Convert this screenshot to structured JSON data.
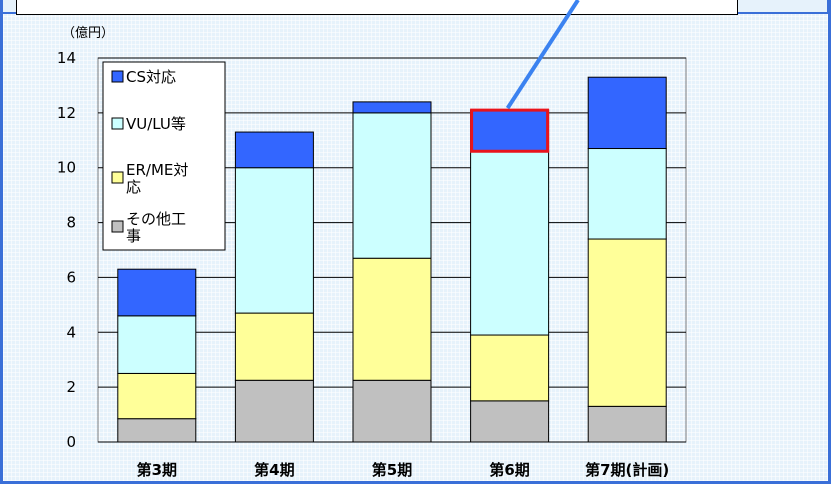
{
  "chart_data": {
    "type": "bar",
    "stacked": true,
    "unit_label": "（億円）",
    "categories": [
      "第3期",
      "第4期",
      "第5期",
      "第6期",
      "第7期(計画)"
    ],
    "ylim": [
      0,
      14
    ],
    "yticks": [
      0,
      2,
      4,
      6,
      8,
      10,
      12,
      14
    ],
    "grid": true,
    "legend_position": "top-left",
    "series": [
      {
        "name": "その他工事",
        "color": "#c0c0c0",
        "values": [
          0.85,
          2.25,
          2.25,
          1.5,
          1.3
        ]
      },
      {
        "name": "ER/ME対応",
        "color": "#ffff99",
        "values": [
          1.65,
          2.45,
          4.45,
          2.4,
          6.1
        ]
      },
      {
        "name": "VU/LU等",
        "color": "#ccffff",
        "values": [
          2.1,
          5.3,
          5.3,
          6.7,
          3.3
        ]
      },
      {
        "name": "CS対応",
        "color": "#3366ff",
        "values": [
          1.7,
          1.3,
          0.4,
          1.5,
          2.6
        ]
      }
    ],
    "legend_order": [
      "CS対応",
      "VU/LU等",
      "ER/ME対応",
      "その他工事"
    ],
    "legend_lines": [
      [
        "CS対応"
      ],
      [
        "VU/LU等"
      ],
      [
        "ER/ME対",
        "応"
      ],
      [
        "その他工",
        "事"
      ]
    ],
    "highlight": {
      "category_index": 3,
      "series": "CS対応",
      "color": "#e8141c"
    },
    "callout_color": "#3b82f0"
  }
}
